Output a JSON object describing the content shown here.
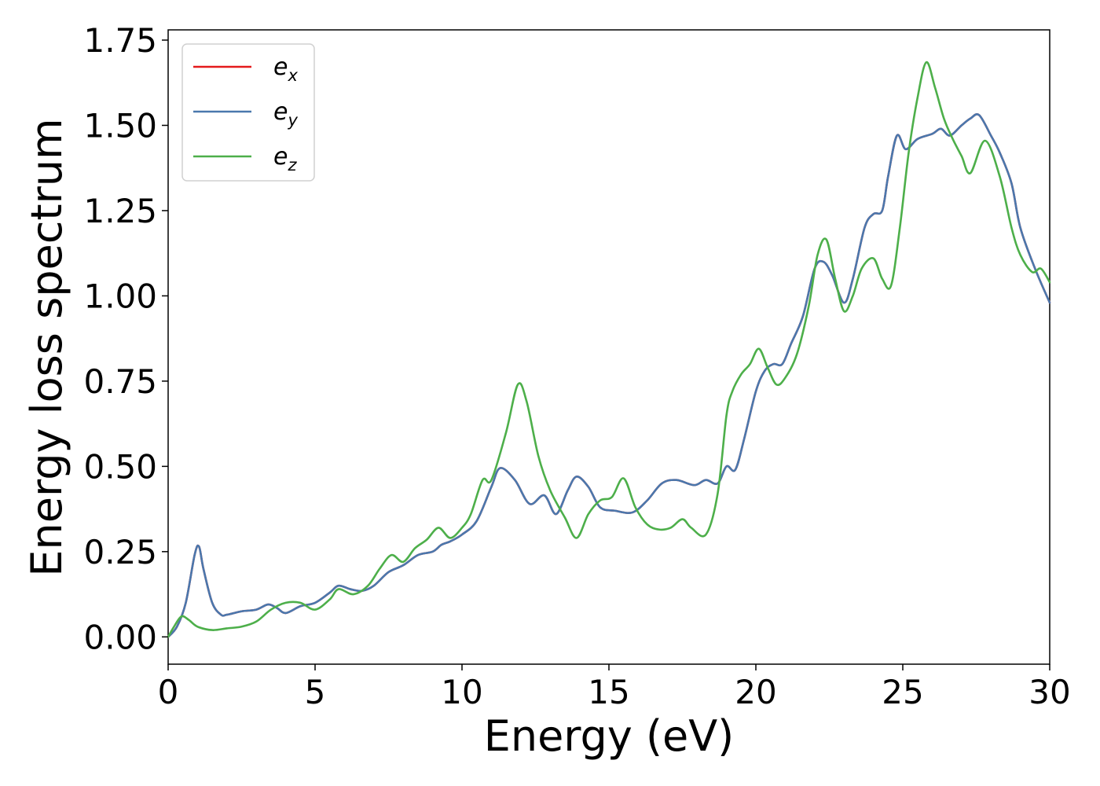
{
  "chart_data": {
    "type": "line",
    "title": "",
    "xlabel": "Energy (eV)",
    "ylabel": "Energy loss spectrum",
    "xlim": [
      0,
      30
    ],
    "ylim": [
      -0.08,
      1.78
    ],
    "xticks": [
      "0",
      "5",
      "10",
      "15",
      "20",
      "25",
      "30"
    ],
    "yticks": [
      "0.00",
      "0.25",
      "0.50",
      "0.75",
      "1.00",
      "1.25",
      "1.50",
      "1.75"
    ],
    "grid": false,
    "legend_position": "top-left",
    "series": [
      {
        "name": "e_x",
        "legend": {
          "base": "e",
          "sub": "x"
        },
        "color": "#e41a1c",
        "x": [
          0,
          0.3,
          0.6,
          0.9,
          1.05,
          1.2,
          1.5,
          1.8,
          2.0,
          2.5,
          3.0,
          3.4,
          3.7,
          4.0,
          4.5,
          5.0,
          5.5,
          5.8,
          6.2,
          6.6,
          7.0,
          7.5,
          8.0,
          8.5,
          9.0,
          9.3,
          9.6,
          10.0,
          10.5,
          11.0,
          11.3,
          11.8,
          12.3,
          12.8,
          13.2,
          13.6,
          13.9,
          14.3,
          14.7,
          15.2,
          15.8,
          16.3,
          16.8,
          17.3,
          17.9,
          18.3,
          18.7,
          19.0,
          19.3,
          19.6,
          20.0,
          20.3,
          20.6,
          20.9,
          21.2,
          21.6,
          22.0,
          22.3,
          22.6,
          23.0,
          23.3,
          23.7,
          24.0,
          24.3,
          24.5,
          24.8,
          25.1,
          25.5,
          26.0,
          26.3,
          26.6,
          27.0,
          27.3,
          27.6,
          28.0,
          28.3,
          28.7,
          29.0,
          29.5,
          30.0
        ],
        "y": [
          0.0,
          0.03,
          0.1,
          0.24,
          0.265,
          0.2,
          0.1,
          0.065,
          0.065,
          0.075,
          0.08,
          0.095,
          0.085,
          0.07,
          0.09,
          0.1,
          0.13,
          0.15,
          0.14,
          0.135,
          0.15,
          0.19,
          0.21,
          0.24,
          0.25,
          0.27,
          0.28,
          0.3,
          0.34,
          0.44,
          0.495,
          0.46,
          0.39,
          0.415,
          0.36,
          0.43,
          0.47,
          0.44,
          0.38,
          0.37,
          0.365,
          0.4,
          0.45,
          0.46,
          0.445,
          0.46,
          0.45,
          0.5,
          0.49,
          0.58,
          0.72,
          0.78,
          0.8,
          0.8,
          0.86,
          0.94,
          1.08,
          1.1,
          1.06,
          0.98,
          1.05,
          1.2,
          1.24,
          1.25,
          1.35,
          1.47,
          1.43,
          1.46,
          1.475,
          1.49,
          1.47,
          1.5,
          1.52,
          1.53,
          1.47,
          1.42,
          1.33,
          1.2,
          1.08,
          0.98
        ]
      },
      {
        "name": "e_y",
        "legend": {
          "base": "e",
          "sub": "y"
        },
        "color": "#4a78ad",
        "x": [
          0,
          0.3,
          0.6,
          0.9,
          1.05,
          1.2,
          1.5,
          1.8,
          2.0,
          2.5,
          3.0,
          3.4,
          3.7,
          4.0,
          4.5,
          5.0,
          5.5,
          5.8,
          6.2,
          6.6,
          7.0,
          7.5,
          8.0,
          8.5,
          9.0,
          9.3,
          9.6,
          10.0,
          10.5,
          11.0,
          11.3,
          11.8,
          12.3,
          12.8,
          13.2,
          13.6,
          13.9,
          14.3,
          14.7,
          15.2,
          15.8,
          16.3,
          16.8,
          17.3,
          17.9,
          18.3,
          18.7,
          19.0,
          19.3,
          19.6,
          20.0,
          20.3,
          20.6,
          20.9,
          21.2,
          21.6,
          22.0,
          22.3,
          22.6,
          23.0,
          23.3,
          23.7,
          24.0,
          24.3,
          24.5,
          24.8,
          25.1,
          25.5,
          26.0,
          26.3,
          26.6,
          27.0,
          27.3,
          27.6,
          28.0,
          28.3,
          28.7,
          29.0,
          29.5,
          30.0
        ],
        "y": [
          0.0,
          0.03,
          0.1,
          0.24,
          0.265,
          0.2,
          0.1,
          0.065,
          0.065,
          0.075,
          0.08,
          0.095,
          0.085,
          0.07,
          0.09,
          0.1,
          0.13,
          0.15,
          0.14,
          0.135,
          0.15,
          0.19,
          0.21,
          0.24,
          0.25,
          0.27,
          0.28,
          0.3,
          0.34,
          0.44,
          0.495,
          0.46,
          0.39,
          0.415,
          0.36,
          0.43,
          0.47,
          0.44,
          0.38,
          0.37,
          0.365,
          0.4,
          0.45,
          0.46,
          0.445,
          0.46,
          0.45,
          0.5,
          0.49,
          0.58,
          0.72,
          0.78,
          0.8,
          0.8,
          0.86,
          0.94,
          1.08,
          1.1,
          1.06,
          0.98,
          1.05,
          1.2,
          1.24,
          1.25,
          1.35,
          1.47,
          1.43,
          1.46,
          1.475,
          1.49,
          1.47,
          1.5,
          1.52,
          1.53,
          1.47,
          1.42,
          1.33,
          1.2,
          1.08,
          0.98
        ]
      },
      {
        "name": "e_z",
        "legend": {
          "base": "e",
          "sub": "z"
        },
        "color": "#4daf4a",
        "x": [
          0,
          0.2,
          0.45,
          0.7,
          1.0,
          1.5,
          2.0,
          2.5,
          3.0,
          3.5,
          4.0,
          4.5,
          5.0,
          5.5,
          5.8,
          6.3,
          6.8,
          7.2,
          7.6,
          8.0,
          8.4,
          8.8,
          9.2,
          9.6,
          10.0,
          10.3,
          10.7,
          11.0,
          11.5,
          11.9,
          12.2,
          12.6,
          13.0,
          13.5,
          13.9,
          14.3,
          14.7,
          15.1,
          15.5,
          15.9,
          16.3,
          16.7,
          17.1,
          17.5,
          17.8,
          18.3,
          18.7,
          19.0,
          19.2,
          19.5,
          19.8,
          20.1,
          20.4,
          20.7,
          21.0,
          21.4,
          21.8,
          22.1,
          22.4,
          22.7,
          23.0,
          23.3,
          23.6,
          24.0,
          24.3,
          24.6,
          24.9,
          25.2,
          25.5,
          25.8,
          26.1,
          26.4,
          26.7,
          27.0,
          27.3,
          27.8,
          28.3,
          28.7,
          29.0,
          29.4,
          29.7,
          30.0
        ],
        "y": [
          0.0,
          0.03,
          0.06,
          0.05,
          0.03,
          0.02,
          0.025,
          0.03,
          0.045,
          0.08,
          0.1,
          0.1,
          0.08,
          0.11,
          0.14,
          0.125,
          0.15,
          0.2,
          0.24,
          0.22,
          0.26,
          0.285,
          0.32,
          0.29,
          0.32,
          0.36,
          0.46,
          0.46,
          0.6,
          0.74,
          0.69,
          0.53,
          0.43,
          0.35,
          0.29,
          0.36,
          0.4,
          0.41,
          0.465,
          0.38,
          0.33,
          0.315,
          0.32,
          0.345,
          0.32,
          0.3,
          0.42,
          0.65,
          0.72,
          0.77,
          0.8,
          0.845,
          0.79,
          0.74,
          0.76,
          0.83,
          0.97,
          1.12,
          1.165,
          1.05,
          0.955,
          1.0,
          1.08,
          1.11,
          1.05,
          1.03,
          1.2,
          1.42,
          1.58,
          1.685,
          1.61,
          1.52,
          1.46,
          1.41,
          1.36,
          1.455,
          1.35,
          1.2,
          1.12,
          1.07,
          1.08,
          1.04
        ]
      }
    ]
  }
}
